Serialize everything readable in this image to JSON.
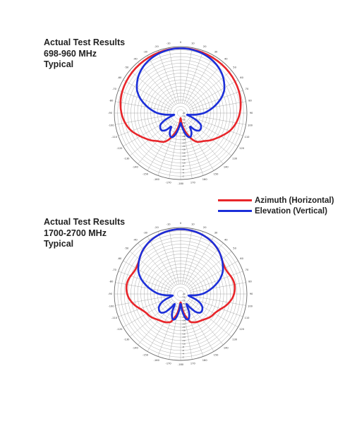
{
  "legend": {
    "azimuth_label": "Azimuth (Horizontal)",
    "elevation_label": "Elevation (Vertical)",
    "azimuth_color": "#e8252a",
    "elevation_color": "#1c2fd9"
  },
  "chart_data": [
    {
      "type": "polar",
      "title_lines": [
        "Actual Test Results",
        "698-960 MHz",
        "Typical"
      ],
      "angle_ticks": [
        -180,
        -170,
        -160,
        -150,
        -140,
        -130,
        -120,
        -110,
        -100,
        -90,
        -80,
        -70,
        -60,
        -50,
        -40,
        -30,
        -20,
        -10,
        0,
        10,
        20,
        30,
        40,
        50,
        60,
        70,
        80,
        90,
        100,
        110,
        120,
        130,
        140,
        150,
        160,
        170
      ],
      "radial_ticks": [
        -2,
        -4,
        -6,
        -8,
        -10,
        -12,
        -14,
        -16,
        -18,
        -20,
        -22,
        -24,
        -26,
        -28,
        -30,
        -32,
        -34,
        -36,
        -38,
        -40
      ],
      "rlim": [
        -40,
        0
      ],
      "grid": true,
      "series": [
        {
          "name": "Azimuth (Horizontal)",
          "color": "#e8252a",
          "angles": [
            0,
            10,
            20,
            30,
            40,
            50,
            60,
            70,
            80,
            90,
            100,
            110,
            120,
            130,
            135,
            140,
            145,
            150,
            155,
            160,
            165,
            170,
            173,
            176,
            180,
            184,
            187,
            190,
            195,
            200,
            205,
            210,
            215,
            220,
            225,
            230,
            240,
            250,
            260,
            270,
            280,
            290,
            300,
            310,
            320,
            330,
            340,
            350
          ],
          "values": [
            -1,
            -1,
            -1.2,
            -1.4,
            -1.6,
            -1.8,
            -2.1,
            -2.5,
            -3.2,
            -4.3,
            -6,
            -8.5,
            -12,
            -15,
            -16.5,
            -18,
            -19,
            -20,
            -22,
            -25,
            -28,
            -31,
            -33,
            -35,
            -37,
            -35,
            -33,
            -31,
            -28,
            -25,
            -22,
            -20,
            -19,
            -18,
            -16.5,
            -15,
            -12,
            -8.5,
            -6,
            -4.3,
            -3.2,
            -2.5,
            -2.1,
            -1.8,
            -1.6,
            -1.4,
            -1.2,
            -1
          ]
        },
        {
          "name": "Elevation (Vertical)",
          "color": "#1c2fd9",
          "angles": [
            0,
            10,
            20,
            30,
            40,
            50,
            60,
            65,
            70,
            75,
            80,
            85,
            90,
            95,
            100,
            105,
            110,
            115,
            120,
            125,
            130,
            135,
            140,
            145,
            150,
            155,
            160,
            165,
            170,
            175,
            180,
            185,
            190,
            195,
            200,
            205,
            210,
            215,
            220,
            225,
            230,
            235,
            240,
            245,
            250,
            255,
            260,
            265,
            270,
            275,
            280,
            285,
            290,
            295,
            300,
            310,
            320,
            330,
            340,
            350
          ],
          "values": [
            -1,
            -1.2,
            -1.8,
            -2.8,
            -4.3,
            -6.5,
            -9.5,
            -11.5,
            -14,
            -17,
            -20,
            -23,
            -26,
            -30,
            -34,
            -36,
            -33,
            -29,
            -26,
            -25,
            -24.5,
            -25,
            -27,
            -30,
            -27,
            -25,
            -24.5,
            -26,
            -29,
            -32,
            -34,
            -32,
            -29,
            -26,
            -24.5,
            -25,
            -27,
            -30,
            -27,
            -25,
            -24.5,
            -25,
            -26,
            -29,
            -33,
            -36,
            -34,
            -30,
            -26,
            -23,
            -20,
            -17,
            -14,
            -11.5,
            -9.5,
            -6.5,
            -4.3,
            -2.8,
            -1.8,
            -1.2
          ]
        }
      ]
    },
    {
      "type": "polar",
      "title_lines": [
        "Actual Test Results",
        "1700-2700 MHz",
        "Typical"
      ],
      "angle_ticks": [
        -180,
        -170,
        -160,
        -150,
        -140,
        -130,
        -120,
        -110,
        -100,
        -90,
        -80,
        -70,
        -60,
        -50,
        -40,
        -30,
        -20,
        -10,
        0,
        10,
        20,
        30,
        40,
        50,
        60,
        70,
        80,
        90,
        100,
        110,
        120,
        130,
        140,
        150,
        160,
        170
      ],
      "radial_ticks": [
        -2,
        -4,
        -6,
        -8,
        -10,
        -12,
        -14,
        -16,
        -18,
        -20,
        -22,
        -24,
        -26,
        -28,
        -30,
        -32,
        -34,
        -36,
        -38,
        -40
      ],
      "rlim": [
        -40,
        0
      ],
      "grid": true,
      "series": [
        {
          "name": "Azimuth (Horizontal)",
          "color": "#e8252a",
          "angles": [
            0,
            10,
            20,
            30,
            40,
            45,
            50,
            55,
            60,
            65,
            70,
            75,
            80,
            85,
            90,
            95,
            100,
            105,
            110,
            115,
            120,
            125,
            130,
            140,
            150,
            160,
            165,
            170,
            175,
            180,
            185,
            190,
            195,
            200,
            210,
            220,
            230,
            235,
            240,
            245,
            250,
            255,
            260,
            265,
            270,
            275,
            280,
            285,
            290,
            295,
            300,
            305,
            310,
            315,
            320,
            330,
            340,
            350
          ],
          "values": [
            -1,
            -1.3,
            -2,
            -3.2,
            -5,
            -6.2,
            -7.5,
            -8.5,
            -9,
            -8.8,
            -8,
            -7.3,
            -7,
            -7.2,
            -7.8,
            -8.8,
            -10.3,
            -12,
            -14,
            -15.5,
            -16.5,
            -17,
            -17.8,
            -19.5,
            -20.5,
            -22,
            -25,
            -28,
            -32,
            -35,
            -32,
            -28,
            -25,
            -22,
            -20.5,
            -19.5,
            -17.8,
            -17,
            -16.5,
            -15.5,
            -14,
            -12,
            -10.3,
            -8.8,
            -7.8,
            -7.2,
            -7,
            -7.3,
            -8,
            -8.8,
            -9,
            -8.5,
            -7.5,
            -6.2,
            -5,
            -3.2,
            -2,
            -1.3
          ]
        },
        {
          "name": "Elevation (Vertical)",
          "color": "#1c2fd9",
          "angles": [
            0,
            10,
            20,
            30,
            40,
            50,
            60,
            65,
            70,
            75,
            80,
            85,
            90,
            95,
            100,
            105,
            110,
            115,
            120,
            125,
            130,
            135,
            140,
            145,
            150,
            155,
            160,
            165,
            170,
            175,
            180,
            185,
            190,
            195,
            200,
            205,
            210,
            215,
            220,
            225,
            230,
            235,
            240,
            245,
            250,
            255,
            260,
            265,
            270,
            275,
            280,
            285,
            290,
            295,
            300,
            310,
            320,
            330,
            340,
            350
          ],
          "values": [
            -1,
            -1.3,
            -2,
            -3.2,
            -5,
            -7.5,
            -10.5,
            -12.5,
            -15,
            -18,
            -21,
            -24,
            -27,
            -31,
            -35,
            -34,
            -30,
            -27,
            -25,
            -24,
            -23.5,
            -24,
            -26,
            -30,
            -33,
            -28,
            -25,
            -24,
            -26,
            -30,
            -34,
            -30,
            -26,
            -24,
            -25,
            -28,
            -33,
            -30,
            -26,
            -24,
            -23.5,
            -24,
            -25,
            -27,
            -30,
            -34,
            -35,
            -31,
            -27,
            -24,
            -21,
            -18,
            -15,
            -12.5,
            -10.5,
            -7.5,
            -5,
            -3.2,
            -2,
            -1.3
          ]
        }
      ]
    }
  ]
}
